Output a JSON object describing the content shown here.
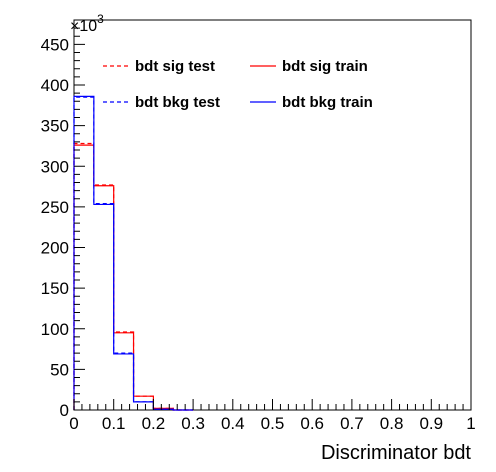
{
  "chart_data": {
    "type": "line",
    "title": "",
    "xlabel": "Discriminator bdt",
    "ylabel": "",
    "y_multiplier_label": "×10",
    "y_multiplier_exponent": "3",
    "xlim": [
      0,
      1
    ],
    "ylim": [
      0,
      480000
    ],
    "grid": false,
    "legend_position": "top",
    "x_ticks": [
      "0",
      "0.1",
      "0.2",
      "0.3",
      "0.4",
      "0.5",
      "0.6",
      "0.7",
      "0.8",
      "0.9",
      "1"
    ],
    "y_ticks": [
      "0",
      "50",
      "100",
      "150",
      "200",
      "250",
      "300",
      "350",
      "400",
      "450"
    ],
    "bin_edges": [
      0,
      0.05,
      0.1,
      0.15,
      0.2,
      0.25,
      0.3
    ],
    "series": [
      {
        "name": "bdt sig test",
        "color": "#ff0000",
        "style": "dashed",
        "values": [
          328000,
          277000,
          96000,
          17000,
          2000,
          0
        ]
      },
      {
        "name": "bdt sig train",
        "color": "#ff0000",
        "style": "solid",
        "values": [
          326000,
          276000,
          95000,
          17000,
          2000,
          0
        ]
      },
      {
        "name": "bdt bkg test",
        "color": "#0000ff",
        "style": "dashed",
        "values": [
          385000,
          254000,
          70000,
          10000,
          1000,
          0
        ]
      },
      {
        "name": "bdt bkg train",
        "color": "#0000ff",
        "style": "solid",
        "values": [
          386000,
          253000,
          69000,
          10000,
          1000,
          0
        ]
      }
    ]
  }
}
